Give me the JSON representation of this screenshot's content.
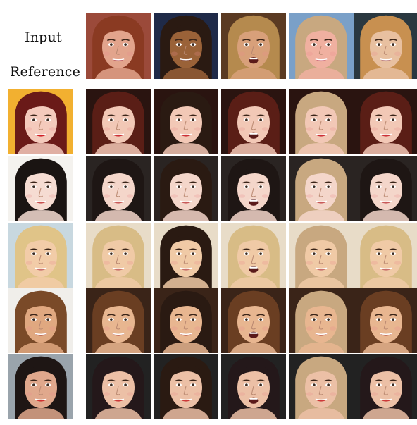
{
  "labels": {
    "input": "Input",
    "reference": "Reference"
  },
  "figure": {
    "input_faces": [
      {
        "hair": "#8a3a22",
        "skin": "#e2a48c",
        "bg": "#9b4a3a",
        "lip": "#b8545a",
        "mouth_open": false
      },
      {
        "hair": "#2a1a12",
        "skin": "#9a6238",
        "bg": "#1f2a48",
        "lip": "#7a3a2a",
        "mouth_open": false
      },
      {
        "hair": "#b58a4e",
        "skin": "#d8a07a",
        "bg": "#5a3a22",
        "lip": "#8a3a32",
        "mouth_open": true
      },
      {
        "hair": "#c8a880",
        "skin": "#f0b0a0",
        "bg": "#7aa0c8",
        "lip": "#c86070",
        "mouth_open": false
      },
      {
        "hair": "#c89050",
        "skin": "#e8c0a0",
        "bg": "#2a3840",
        "lip": "#b06868",
        "mouth_open": false
      }
    ],
    "reference_faces": [
      {
        "hair": "#6a1a18",
        "skin": "#f4cabc",
        "bg": "#f2b030",
        "lip": "#d02028"
      },
      {
        "hair": "#1a1412",
        "skin": "#f6dcd2",
        "bg": "#f4f2ee",
        "lip": "#c85050"
      },
      {
        "hair": "#e0c488",
        "skin": "#f2cca8",
        "bg": "#c8d8e0",
        "lip": "#c87070"
      },
      {
        "hair": "#7a4a28",
        "skin": "#e0a880",
        "bg": "#f0eeea",
        "lip": "#a84840"
      },
      {
        "hair": "#1e1614",
        "skin": "#e0a88c",
        "bg": "#9aa4ac",
        "lip": "#d03030"
      }
    ],
    "output_style": [
      {
        "hair": "#5a1e16",
        "skin": "#f2c8b6",
        "lip": "#cc3038",
        "bg": "#2a1410"
      },
      {
        "hair": "#1e1614",
        "skin": "#f4d6ca",
        "lip": "#c85a5a",
        "bg": "#2a2422"
      },
      {
        "hair": "#d8bc86",
        "skin": "#f0caa6",
        "lip": "#c8706e",
        "bg": "#e8dcc8"
      },
      {
        "hair": "#6a3e22",
        "skin": "#e8b690",
        "lip": "#b24a44",
        "bg": "#3a2418"
      },
      {
        "hair": "#24181a",
        "skin": "#ecc0a6",
        "lip": "#cc3838",
        "bg": "#222"
      }
    ]
  }
}
